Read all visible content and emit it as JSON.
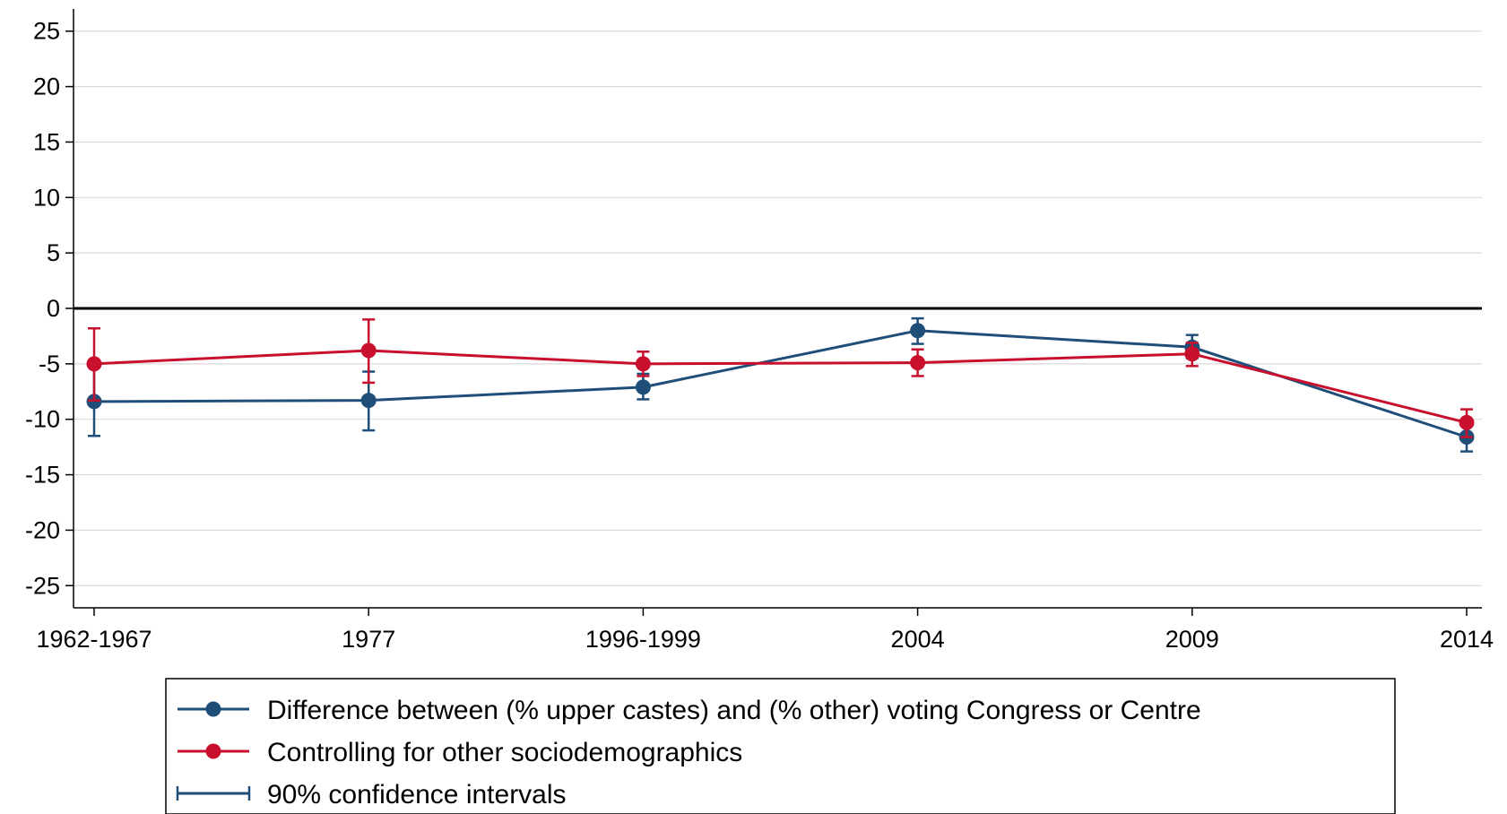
{
  "chart_data": {
    "type": "line",
    "categories": [
      "1962-1967",
      "1977",
      "1996-1999",
      "2004",
      "2009",
      "2014"
    ],
    "ylim": [
      -27,
      27
    ],
    "yticks": [
      25,
      20,
      15,
      10,
      5,
      0,
      -5,
      -10,
      -15,
      -20,
      -25
    ],
    "ytick_labels": [
      "25",
      "20",
      "15",
      "10",
      "5",
      "0",
      "-5",
      "-10",
      "-15",
      "-20",
      "-25"
    ],
    "grid": true,
    "reference_line": 0,
    "legend_position": "bottom",
    "series": [
      {
        "name": "Difference between (% upper castes) and (% other) voting Congress or Centre",
        "color": "#1f4e79",
        "values": [
          -8.4,
          -8.3,
          -7.1,
          -2.0,
          -3.5,
          -11.6
        ],
        "ci_low": [
          -11.5,
          -11.0,
          -8.2,
          -3.2,
          -4.5,
          -12.9
        ],
        "ci_high": [
          -5.3,
          -5.7,
          -5.9,
          -0.9,
          -2.4,
          -10.4
        ]
      },
      {
        "name": "Controlling for other sociodemographics",
        "color": "#c8102e",
        "values": [
          -5.0,
          -3.8,
          -5.0,
          -4.9,
          -4.1,
          -10.3
        ],
        "ci_low": [
          -8.3,
          -6.7,
          -6.1,
          -6.1,
          -5.2,
          -11.6
        ],
        "ci_high": [
          -1.8,
          -1.0,
          -3.9,
          -3.7,
          -3.1,
          -9.1
        ]
      }
    ],
    "legend": [
      "Difference between (% upper castes) and (% other) voting Congress or Centre",
      "Controlling for other sociodemographics",
      "90% confidence intervals"
    ]
  }
}
